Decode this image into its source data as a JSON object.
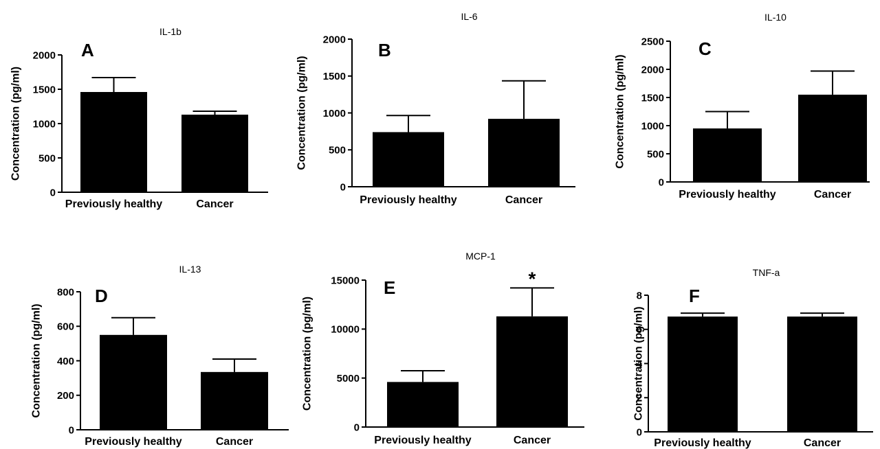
{
  "chart_data": [
    {
      "panel": "A",
      "title": "IL-1b",
      "type": "bar",
      "ylabel": "Concentration (pg/ml)",
      "categories": [
        "Previously healthy",
        "Cancer"
      ],
      "values": [
        1460,
        1130
      ],
      "errors": [
        210,
        50
      ],
      "ylim": [
        0,
        2000
      ],
      "yticks": [
        0,
        500,
        1000,
        1500,
        2000
      ],
      "annotations": [
        "",
        ""
      ],
      "grid": false,
      "legend": "none"
    },
    {
      "panel": "B",
      "title": "IL-6",
      "type": "bar",
      "ylabel": "Concentration (pg/ml)",
      "categories": [
        "Previously healthy",
        "Cancer"
      ],
      "values": [
        740,
        920
      ],
      "errors": [
        225,
        515
      ],
      "ylim": [
        0,
        2000
      ],
      "yticks": [
        0,
        500,
        1000,
        1500,
        2000
      ],
      "annotations": [
        "",
        ""
      ],
      "grid": false,
      "legend": "none"
    },
    {
      "panel": "C",
      "title": "IL-10",
      "type": "bar",
      "ylabel": "Concentration (pg/ml)",
      "categories": [
        "Previously healthy",
        "Cancer"
      ],
      "values": [
        950,
        1550
      ],
      "errors": [
        300,
        420
      ],
      "ylim": [
        0,
        2500
      ],
      "yticks": [
        0,
        500,
        1000,
        1500,
        2000,
        2500
      ],
      "annotations": [
        "",
        ""
      ],
      "grid": false,
      "legend": "none"
    },
    {
      "panel": "D",
      "title": "IL-13",
      "type": "bar",
      "ylabel": "Concentration (pg/ml)",
      "categories": [
        "Previously healthy",
        "Cancer"
      ],
      "values": [
        550,
        335
      ],
      "errors": [
        100,
        75
      ],
      "ylim": [
        0,
        800
      ],
      "yticks": [
        0,
        200,
        400,
        600,
        800
      ],
      "annotations": [
        "",
        ""
      ],
      "grid": false,
      "legend": "none"
    },
    {
      "panel": "E",
      "title": "MCP-1",
      "type": "bar",
      "ylabel": "Concentration (pg/ml)",
      "categories": [
        "Previously healthy",
        "Cancer"
      ],
      "values": [
        4600,
        11300
      ],
      "errors": [
        1150,
        2900
      ],
      "ylim": [
        0,
        15000
      ],
      "yticks": [
        0,
        5000,
        10000,
        15000
      ],
      "annotations": [
        "",
        "*"
      ],
      "grid": false,
      "legend": "none"
    },
    {
      "panel": "F",
      "title": "TNF-a",
      "type": "bar",
      "ylabel": "Concentration (pg/ml)",
      "categories": [
        "Previously healthy",
        "Cancer"
      ],
      "values": [
        6.75,
        6.75
      ],
      "errors": [
        0.2,
        0.2
      ],
      "ylim": [
        0,
        8
      ],
      "yticks": [
        0,
        2,
        4,
        6,
        8
      ],
      "annotations": [
        "",
        ""
      ],
      "grid": false,
      "legend": "none"
    }
  ]
}
